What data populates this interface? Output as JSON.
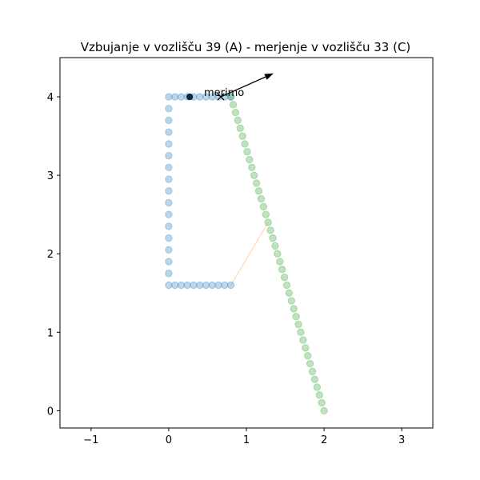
{
  "chart_data": {
    "type": "scatter",
    "title": "Vzbujanje v vozlišču 39  (A) - merjenje v vozlišču 33 (C)",
    "xlabel": "",
    "ylabel": "",
    "xlim": [
      -1.4,
      3.4
    ],
    "ylim": [
      -0.22,
      4.5
    ],
    "xticks": [
      -1,
      0,
      1,
      2,
      3
    ],
    "yticks": [
      0,
      1,
      2,
      3,
      4
    ],
    "grid": false,
    "legend": "none",
    "series": [
      {
        "color": "#1f77b4",
        "alpha": 0.3,
        "points": [
          [
            0.8,
            1.6
          ],
          [
            0.72,
            1.6
          ],
          [
            0.64,
            1.6
          ],
          [
            0.56,
            1.6
          ],
          [
            0.48,
            1.6
          ],
          [
            0.4,
            1.6
          ],
          [
            0.32,
            1.6
          ],
          [
            0.24,
            1.6
          ],
          [
            0.16,
            1.6
          ],
          [
            0.08,
            1.6
          ],
          [
            0.0,
            1.6
          ],
          [
            0.0,
            1.75
          ],
          [
            0.0,
            1.9
          ],
          [
            0.0,
            2.05
          ],
          [
            0.0,
            2.2
          ],
          [
            0.0,
            2.35
          ],
          [
            0.0,
            2.5
          ],
          [
            0.0,
            2.65
          ],
          [
            0.0,
            2.8
          ],
          [
            0.0,
            2.95
          ],
          [
            0.0,
            3.1
          ],
          [
            0.0,
            3.25
          ],
          [
            0.0,
            3.4
          ],
          [
            0.0,
            3.55
          ],
          [
            0.0,
            3.7
          ],
          [
            0.0,
            3.85
          ],
          [
            0.0,
            4.0
          ],
          [
            0.08,
            4.0
          ],
          [
            0.16,
            4.0
          ],
          [
            0.24,
            4.0
          ],
          [
            0.32,
            4.0
          ],
          [
            0.4,
            4.0
          ],
          [
            0.48,
            4.0
          ],
          [
            0.56,
            4.0
          ],
          [
            0.64,
            4.0
          ],
          [
            0.72,
            4.0
          ],
          [
            0.8,
            4.0
          ]
        ]
      },
      {
        "color": "#2ca02c",
        "alpha": 0.3,
        "points": [
          [
            0.8,
            4.0
          ],
          [
            0.83,
            3.9
          ],
          [
            0.86,
            3.8
          ],
          [
            0.89,
            3.7
          ],
          [
            0.92,
            3.6
          ],
          [
            0.95,
            3.5
          ],
          [
            0.98,
            3.4
          ],
          [
            1.01,
            3.3
          ],
          [
            1.04,
            3.2
          ],
          [
            1.07,
            3.1
          ],
          [
            1.1,
            3.0
          ],
          [
            1.13,
            2.9
          ],
          [
            1.16,
            2.8
          ],
          [
            1.19,
            2.7
          ],
          [
            1.22,
            2.6
          ],
          [
            1.25,
            2.5
          ],
          [
            1.28,
            2.4
          ],
          [
            1.31,
            2.3
          ],
          [
            1.34,
            2.2
          ],
          [
            1.37,
            2.1
          ],
          [
            1.4,
            2.0
          ],
          [
            1.43,
            1.9
          ],
          [
            1.46,
            1.8
          ],
          [
            1.49,
            1.7
          ],
          [
            1.52,
            1.6
          ],
          [
            1.55,
            1.5
          ],
          [
            1.58,
            1.4
          ],
          [
            1.61,
            1.3
          ],
          [
            1.64,
            1.2
          ],
          [
            1.67,
            1.1
          ],
          [
            1.7,
            1.0
          ],
          [
            1.73,
            0.9
          ],
          [
            1.76,
            0.8
          ],
          [
            1.79,
            0.7
          ],
          [
            1.82,
            0.6
          ],
          [
            1.85,
            0.5
          ],
          [
            1.88,
            0.4
          ],
          [
            1.91,
            0.3
          ],
          [
            1.94,
            0.2
          ],
          [
            1.97,
            0.1
          ],
          [
            2.0,
            0.0
          ]
        ]
      }
    ],
    "connector": {
      "color": "#ff7f0e",
      "alpha": 0.25,
      "points": [
        [
          0.8,
          1.6
        ],
        [
          1.28,
          2.4
        ]
      ]
    },
    "excitation_point": {
      "x": 0.27,
      "y": 4.0,
      "color": "#0b2a44"
    },
    "measurement_point": {
      "x": 0.67,
      "y": 4.0,
      "label": "merimo",
      "marker": "x"
    },
    "arrow": {
      "from": [
        0.67,
        4.0
      ],
      "to": [
        1.35,
        4.3
      ],
      "color": "#000000"
    }
  }
}
